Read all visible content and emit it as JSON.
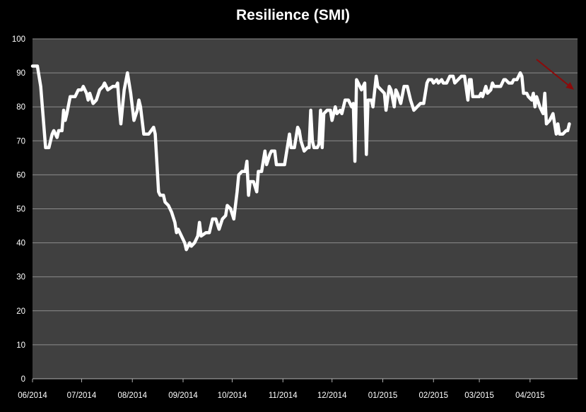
{
  "chart_data": {
    "type": "line",
    "title": "Resilience (SMI)",
    "xlabel": "",
    "ylabel": "",
    "ylim": [
      0,
      100
    ],
    "yticks": [
      0,
      10,
      20,
      30,
      40,
      50,
      60,
      70,
      80,
      90,
      100
    ],
    "xticks": [
      "06/2014",
      "07/2014",
      "08/2014",
      "09/2014",
      "10/2014",
      "11/2014",
      "12/2014",
      "01/2015",
      "02/2015",
      "03/2015",
      "04/2015"
    ],
    "xlim": [
      "2014-06-01",
      "2015-04-30"
    ],
    "grid": true,
    "colors": {
      "background": "#000000",
      "plot_area": "#404040",
      "gridline": "#8c8c8c",
      "line": "#ffffff",
      "arrow": "#8b0a0a"
    },
    "series": [
      {
        "values": [
          [
            "2014-06-01",
            92
          ],
          [
            "2014-06-04",
            92
          ],
          [
            "2014-06-06",
            86
          ],
          [
            "2014-06-07",
            80
          ],
          [
            "2014-06-09",
            68
          ],
          [
            "2014-06-11",
            68
          ],
          [
            "2014-06-13",
            72
          ],
          [
            "2014-06-14",
            73
          ],
          [
            "2014-06-16",
            71
          ],
          [
            "2014-06-17",
            73
          ],
          [
            "2014-06-19",
            73
          ],
          [
            "2014-06-20",
            79
          ],
          [
            "2014-06-21",
            76
          ],
          [
            "2014-06-22",
            78
          ],
          [
            "2014-06-24",
            83
          ],
          [
            "2014-06-27",
            83
          ],
          [
            "2014-06-29",
            85
          ],
          [
            "2014-07-01",
            85
          ],
          [
            "2014-07-02",
            86
          ],
          [
            "2014-07-04",
            84
          ],
          [
            "2014-07-05",
            82
          ],
          [
            "2014-07-06",
            84
          ],
          [
            "2014-07-08",
            81
          ],
          [
            "2014-07-10",
            82
          ],
          [
            "2014-07-12",
            85
          ],
          [
            "2014-07-14",
            86
          ],
          [
            "2014-07-15",
            87
          ],
          [
            "2014-07-17",
            85
          ],
          [
            "2014-07-20",
            86
          ],
          [
            "2014-07-22",
            86
          ],
          [
            "2014-07-23",
            87
          ],
          [
            "2014-07-24",
            80
          ],
          [
            "2014-07-25",
            75
          ],
          [
            "2014-07-26",
            80
          ],
          [
            "2014-07-27",
            85
          ],
          [
            "2014-07-29",
            90
          ],
          [
            "2014-07-31",
            84
          ],
          [
            "2014-08-01",
            80
          ],
          [
            "2014-08-02",
            76
          ],
          [
            "2014-08-04",
            79
          ],
          [
            "2014-08-05",
            82
          ],
          [
            "2014-08-06",
            80
          ],
          [
            "2014-08-08",
            72
          ],
          [
            "2014-08-11",
            72
          ],
          [
            "2014-08-14",
            74
          ],
          [
            "2014-08-15",
            72
          ],
          [
            "2014-08-17",
            55
          ],
          [
            "2014-08-18",
            54
          ],
          [
            "2014-08-20",
            54
          ],
          [
            "2014-08-21",
            52
          ],
          [
            "2014-08-23",
            51
          ],
          [
            "2014-08-25",
            49
          ],
          [
            "2014-08-27",
            46
          ],
          [
            "2014-08-28",
            43
          ],
          [
            "2014-08-29",
            44
          ],
          [
            "2014-08-31",
            42
          ],
          [
            "2014-09-02",
            40
          ],
          [
            "2014-09-03",
            38
          ],
          [
            "2014-09-05",
            40
          ],
          [
            "2014-09-06",
            39
          ],
          [
            "2014-09-08",
            40
          ],
          [
            "2014-09-10",
            42
          ],
          [
            "2014-09-11",
            46
          ],
          [
            "2014-09-12",
            42
          ],
          [
            "2014-09-15",
            43
          ],
          [
            "2014-09-17",
            43
          ],
          [
            "2014-09-19",
            47
          ],
          [
            "2014-09-21",
            47
          ],
          [
            "2014-09-23",
            44
          ],
          [
            "2014-09-25",
            47
          ],
          [
            "2014-09-27",
            48
          ],
          [
            "2014-09-28",
            51
          ],
          [
            "2014-09-30",
            50
          ],
          [
            "2014-10-02",
            47
          ],
          [
            "2014-10-04",
            55
          ],
          [
            "2014-10-05",
            60
          ],
          [
            "2014-10-07",
            61
          ],
          [
            "2014-10-09",
            61
          ],
          [
            "2014-10-10",
            64
          ],
          [
            "2014-10-11",
            54
          ],
          [
            "2014-10-12",
            58
          ],
          [
            "2014-10-14",
            58
          ],
          [
            "2014-10-16",
            55
          ],
          [
            "2014-10-17",
            61
          ],
          [
            "2014-10-19",
            61
          ],
          [
            "2014-10-21",
            67
          ],
          [
            "2014-10-22",
            63
          ],
          [
            "2014-10-24",
            66
          ],
          [
            "2014-10-25",
            67
          ],
          [
            "2014-10-27",
            67
          ],
          [
            "2014-10-28",
            63
          ],
          [
            "2014-10-31",
            63
          ],
          [
            "2014-11-02",
            63
          ],
          [
            "2014-11-04",
            69
          ],
          [
            "2014-11-05",
            72
          ],
          [
            "2014-11-06",
            68
          ],
          [
            "2014-11-08",
            68
          ],
          [
            "2014-11-10",
            74
          ],
          [
            "2014-11-11",
            73
          ],
          [
            "2014-11-12",
            70
          ],
          [
            "2014-11-14",
            67
          ],
          [
            "2014-11-16",
            68
          ],
          [
            "2014-11-17",
            68
          ],
          [
            "2014-11-18",
            79
          ],
          [
            "2014-11-19",
            70
          ],
          [
            "2014-11-20",
            68
          ],
          [
            "2014-11-22",
            68
          ],
          [
            "2014-11-23",
            69
          ],
          [
            "2014-11-24",
            79
          ],
          [
            "2014-11-25",
            68
          ],
          [
            "2014-11-26",
            78
          ],
          [
            "2014-11-28",
            79
          ],
          [
            "2014-11-30",
            79
          ],
          [
            "2014-12-01",
            76
          ],
          [
            "2014-12-03",
            80
          ],
          [
            "2014-12-04",
            78
          ],
          [
            "2014-12-06",
            79
          ],
          [
            "2014-12-07",
            78
          ],
          [
            "2014-12-09",
            82
          ],
          [
            "2014-12-11",
            82
          ],
          [
            "2014-12-13",
            80
          ],
          [
            "2014-12-14",
            81
          ],
          [
            "2014-12-15",
            64
          ],
          [
            "2014-12-16",
            88
          ],
          [
            "2014-12-18",
            86
          ],
          [
            "2014-12-19",
            85
          ],
          [
            "2014-12-20",
            86
          ],
          [
            "2014-12-21",
            87
          ],
          [
            "2014-12-22",
            66
          ],
          [
            "2014-12-23",
            82
          ],
          [
            "2014-12-25",
            82
          ],
          [
            "2014-12-26",
            80
          ],
          [
            "2014-12-28",
            89
          ],
          [
            "2014-12-29",
            86
          ],
          [
            "2014-12-31",
            85
          ],
          [
            "2015-01-02",
            84
          ],
          [
            "2015-01-03",
            79
          ],
          [
            "2015-01-05",
            86
          ],
          [
            "2015-01-06",
            85
          ],
          [
            "2015-01-08",
            80
          ],
          [
            "2015-01-09",
            85
          ],
          [
            "2015-01-10",
            84
          ],
          [
            "2015-01-12",
            81
          ],
          [
            "2015-01-14",
            86
          ],
          [
            "2015-01-16",
            86
          ],
          [
            "2015-01-18",
            82
          ],
          [
            "2015-01-20",
            79
          ],
          [
            "2015-01-22",
            80
          ],
          [
            "2015-01-24",
            81
          ],
          [
            "2015-01-26",
            81
          ],
          [
            "2015-01-28",
            87
          ],
          [
            "2015-01-29",
            88
          ],
          [
            "2015-01-31",
            88
          ],
          [
            "2015-02-01",
            87
          ],
          [
            "2015-02-03",
            88
          ],
          [
            "2015-02-04",
            87
          ],
          [
            "2015-02-06",
            88
          ],
          [
            "2015-02-07",
            87
          ],
          [
            "2015-02-09",
            87
          ],
          [
            "2015-02-11",
            89
          ],
          [
            "2015-02-13",
            89
          ],
          [
            "2015-02-14",
            87
          ],
          [
            "2015-02-16",
            88
          ],
          [
            "2015-02-18",
            89
          ],
          [
            "2015-02-20",
            89
          ],
          [
            "2015-02-22",
            82
          ],
          [
            "2015-02-23",
            88
          ],
          [
            "2015-02-24",
            88
          ],
          [
            "2015-02-25",
            83
          ],
          [
            "2015-02-27",
            83
          ],
          [
            "2015-03-01",
            83
          ],
          [
            "2015-03-02",
            84
          ],
          [
            "2015-03-03",
            83
          ],
          [
            "2015-03-05",
            86
          ],
          [
            "2015-03-06",
            84
          ],
          [
            "2015-03-08",
            85
          ],
          [
            "2015-03-09",
            87
          ],
          [
            "2015-03-10",
            86
          ],
          [
            "2015-03-12",
            86
          ],
          [
            "2015-03-14",
            86
          ],
          [
            "2015-03-16",
            88
          ],
          [
            "2015-03-17",
            88
          ],
          [
            "2015-03-19",
            87
          ],
          [
            "2015-03-21",
            87
          ],
          [
            "2015-03-22",
            88
          ],
          [
            "2015-03-24",
            88
          ],
          [
            "2015-03-26",
            90
          ],
          [
            "2015-03-27",
            89
          ],
          [
            "2015-03-28",
            84
          ],
          [
            "2015-03-30",
            84
          ],
          [
            "2015-03-31",
            83
          ],
          [
            "2015-04-02",
            82
          ],
          [
            "2015-04-03",
            84
          ],
          [
            "2015-04-04",
            80
          ],
          [
            "2015-04-05",
            83
          ],
          [
            "2015-04-07",
            80
          ],
          [
            "2015-04-09",
            78
          ],
          [
            "2015-04-10",
            84
          ],
          [
            "2015-04-11",
            75
          ],
          [
            "2015-04-13",
            76
          ],
          [
            "2015-04-14",
            77
          ],
          [
            "2015-04-15",
            78
          ],
          [
            "2015-04-17",
            72
          ],
          [
            "2015-04-18",
            75
          ],
          [
            "2015-04-19",
            72
          ],
          [
            "2015-04-21",
            72
          ],
          [
            "2015-04-23",
            73
          ],
          [
            "2015-04-24",
            73
          ],
          [
            "2015-04-25",
            75
          ]
        ]
      }
    ]
  }
}
